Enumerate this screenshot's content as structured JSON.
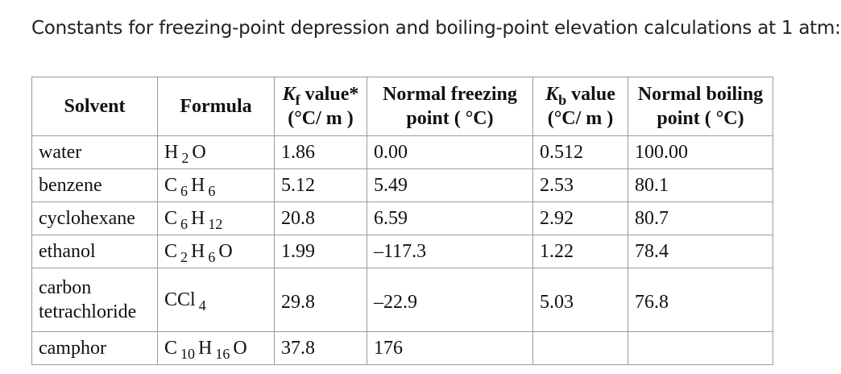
{
  "caption": "Constants for freezing-point depression and boiling-point elevation calculations at 1 atm:",
  "headers": {
    "solvent": "Solvent",
    "formula": "Formula",
    "kf": {
      "symbol": "K",
      "sub": "f",
      "rest": " value*",
      "unit": "(°C/ m )"
    },
    "nfp": {
      "line1": "Normal freezing",
      "line2": "point ( °C)"
    },
    "kb": {
      "symbol": "K",
      "sub": "b",
      "rest": " value",
      "unit": "(°C/ m )"
    },
    "nbp": {
      "line1": "Normal boiling",
      "line2": "point ( °C)"
    }
  },
  "rows": [
    {
      "solvent": "water",
      "formula": [
        [
          "H",
          "2"
        ],
        [
          "O",
          ""
        ]
      ],
      "kf": "1.86",
      "nfp": "0.00",
      "kb": "0.512",
      "nbp": "100.00"
    },
    {
      "solvent": "benzene",
      "formula": [
        [
          "C",
          "6"
        ],
        [
          "H",
          "6"
        ]
      ],
      "kf": "5.12",
      "nfp": "5.49",
      "kb": "2.53",
      "nbp": "80.1"
    },
    {
      "solvent": "cyclohexane",
      "formula": [
        [
          "C",
          "6"
        ],
        [
          "H",
          "12"
        ]
      ],
      "kf": "20.8",
      "nfp": "6.59",
      "kb": "2.92",
      "nbp": "80.7"
    },
    {
      "solvent": "ethanol",
      "formula": [
        [
          "C",
          "2"
        ],
        [
          "H",
          "6"
        ],
        [
          "O",
          ""
        ]
      ],
      "kf": "1.99",
      "nfp": "–117.3",
      "kb": "1.22",
      "nbp": "78.4"
    },
    {
      "solvent": "carbon tetrachloride",
      "formula": [
        [
          "CCl",
          "4"
        ]
      ],
      "kf": "29.8",
      "nfp": "–22.9",
      "kb": "5.03",
      "nbp": "76.8"
    },
    {
      "solvent": "camphor",
      "formula": [
        [
          "C",
          "10"
        ],
        [
          "H",
          "16"
        ],
        [
          "O",
          ""
        ]
      ],
      "kf": "37.8",
      "nfp": "176",
      "kb": "",
      "nbp": ""
    }
  ]
}
